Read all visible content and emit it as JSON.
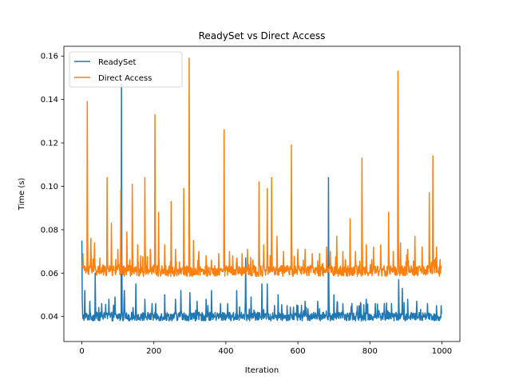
{
  "chart_data": {
    "type": "line",
    "title": "ReadySet vs Direct Access",
    "xlabel": "Iteration",
    "ylabel": "Time (s)",
    "xlim": [
      -50,
      1050
    ],
    "ylim": [
      0.0285,
      0.1645
    ],
    "xticks": [
      0,
      200,
      400,
      600,
      800,
      1000
    ],
    "yticks": [
      0.04,
      0.06,
      0.08,
      0.1,
      0.12,
      0.14,
      0.16
    ],
    "ytick_labels": [
      "0.04",
      "0.06",
      "0.08",
      "0.10",
      "0.12",
      "0.14",
      "0.16"
    ],
    "grid": false,
    "legend_position": "top-left",
    "n_points": 1000,
    "series": [
      {
        "name": "ReadySet",
        "color": "#1f77b4",
        "baseline": 0.04,
        "noise_amplitude": 0.002,
        "spikes": [
          {
            "x": 0,
            "y": 0.075
          },
          {
            "x": 8,
            "y": 0.052
          },
          {
            "x": 22,
            "y": 0.047
          },
          {
            "x": 37,
            "y": 0.06
          },
          {
            "x": 55,
            "y": 0.046
          },
          {
            "x": 75,
            "y": 0.048
          },
          {
            "x": 92,
            "y": 0.049
          },
          {
            "x": 110,
            "y": 0.147
          },
          {
            "x": 118,
            "y": 0.052
          },
          {
            "x": 150,
            "y": 0.055
          },
          {
            "x": 175,
            "y": 0.048
          },
          {
            "x": 195,
            "y": 0.046
          },
          {
            "x": 205,
            "y": 0.046
          },
          {
            "x": 230,
            "y": 0.05
          },
          {
            "x": 260,
            "y": 0.048
          },
          {
            "x": 275,
            "y": 0.052
          },
          {
            "x": 300,
            "y": 0.051
          },
          {
            "x": 320,
            "y": 0.047
          },
          {
            "x": 345,
            "y": 0.048
          },
          {
            "x": 360,
            "y": 0.052
          },
          {
            "x": 385,
            "y": 0.046
          },
          {
            "x": 405,
            "y": 0.046
          },
          {
            "x": 430,
            "y": 0.052
          },
          {
            "x": 455,
            "y": 0.067
          },
          {
            "x": 470,
            "y": 0.049
          },
          {
            "x": 500,
            "y": 0.055
          },
          {
            "x": 515,
            "y": 0.055
          },
          {
            "x": 545,
            "y": 0.05
          },
          {
            "x": 570,
            "y": 0.045
          },
          {
            "x": 600,
            "y": 0.045
          },
          {
            "x": 620,
            "y": 0.047
          },
          {
            "x": 655,
            "y": 0.047
          },
          {
            "x": 685,
            "y": 0.104
          },
          {
            "x": 700,
            "y": 0.05
          },
          {
            "x": 725,
            "y": 0.046
          },
          {
            "x": 750,
            "y": 0.046
          },
          {
            "x": 770,
            "y": 0.045
          },
          {
            "x": 790,
            "y": 0.048
          },
          {
            "x": 815,
            "y": 0.046
          },
          {
            "x": 840,
            "y": 0.046
          },
          {
            "x": 860,
            "y": 0.046
          },
          {
            "x": 880,
            "y": 0.057
          },
          {
            "x": 890,
            "y": 0.053
          },
          {
            "x": 905,
            "y": 0.048
          },
          {
            "x": 930,
            "y": 0.047
          },
          {
            "x": 960,
            "y": 0.046
          },
          {
            "x": 985,
            "y": 0.045
          },
          {
            "x": 998,
            "y": 0.045
          }
        ]
      },
      {
        "name": "Direct Access",
        "color": "#ff7f0e",
        "baseline": 0.061,
        "noise_amplitude": 0.0025,
        "spikes": [
          {
            "x": 3,
            "y": 0.069
          },
          {
            "x": 15,
            "y": 0.139
          },
          {
            "x": 25,
            "y": 0.076
          },
          {
            "x": 35,
            "y": 0.074
          },
          {
            "x": 50,
            "y": 0.067
          },
          {
            "x": 70,
            "y": 0.104
          },
          {
            "x": 82,
            "y": 0.083
          },
          {
            "x": 100,
            "y": 0.071
          },
          {
            "x": 108,
            "y": 0.098
          },
          {
            "x": 125,
            "y": 0.079
          },
          {
            "x": 140,
            "y": 0.101
          },
          {
            "x": 155,
            "y": 0.073
          },
          {
            "x": 175,
            "y": 0.104
          },
          {
            "x": 190,
            "y": 0.071
          },
          {
            "x": 203,
            "y": 0.133
          },
          {
            "x": 213,
            "y": 0.088
          },
          {
            "x": 230,
            "y": 0.073
          },
          {
            "x": 248,
            "y": 0.093
          },
          {
            "x": 260,
            "y": 0.071
          },
          {
            "x": 283,
            "y": 0.099
          },
          {
            "x": 298,
            "y": 0.159
          },
          {
            "x": 310,
            "y": 0.075
          },
          {
            "x": 325,
            "y": 0.07
          },
          {
            "x": 345,
            "y": 0.068
          },
          {
            "x": 360,
            "y": 0.066
          },
          {
            "x": 380,
            "y": 0.069
          },
          {
            "x": 395,
            "y": 0.126
          },
          {
            "x": 410,
            "y": 0.07
          },
          {
            "x": 430,
            "y": 0.066
          },
          {
            "x": 445,
            "y": 0.069
          },
          {
            "x": 460,
            "y": 0.071
          },
          {
            "x": 475,
            "y": 0.066
          },
          {
            "x": 492,
            "y": 0.102
          },
          {
            "x": 505,
            "y": 0.073
          },
          {
            "x": 515,
            "y": 0.099
          },
          {
            "x": 527,
            "y": 0.104
          },
          {
            "x": 542,
            "y": 0.077
          },
          {
            "x": 560,
            "y": 0.07
          },
          {
            "x": 582,
            "y": 0.119
          },
          {
            "x": 600,
            "y": 0.071
          },
          {
            "x": 620,
            "y": 0.071
          },
          {
            "x": 640,
            "y": 0.069
          },
          {
            "x": 660,
            "y": 0.069
          },
          {
            "x": 680,
            "y": 0.072
          },
          {
            "x": 690,
            "y": 0.07
          },
          {
            "x": 708,
            "y": 0.077
          },
          {
            "x": 725,
            "y": 0.07
          },
          {
            "x": 745,
            "y": 0.085
          },
          {
            "x": 760,
            "y": 0.07
          },
          {
            "x": 778,
            "y": 0.113
          },
          {
            "x": 790,
            "y": 0.073
          },
          {
            "x": 810,
            "y": 0.072
          },
          {
            "x": 830,
            "y": 0.073
          },
          {
            "x": 852,
            "y": 0.088
          },
          {
            "x": 865,
            "y": 0.07
          },
          {
            "x": 878,
            "y": 0.153
          },
          {
            "x": 885,
            "y": 0.074
          },
          {
            "x": 905,
            "y": 0.071
          },
          {
            "x": 925,
            "y": 0.077
          },
          {
            "x": 945,
            "y": 0.072
          },
          {
            "x": 965,
            "y": 0.097
          },
          {
            "x": 975,
            "y": 0.114
          },
          {
            "x": 985,
            "y": 0.072
          },
          {
            "x": 998,
            "y": 0.063
          }
        ]
      }
    ]
  }
}
